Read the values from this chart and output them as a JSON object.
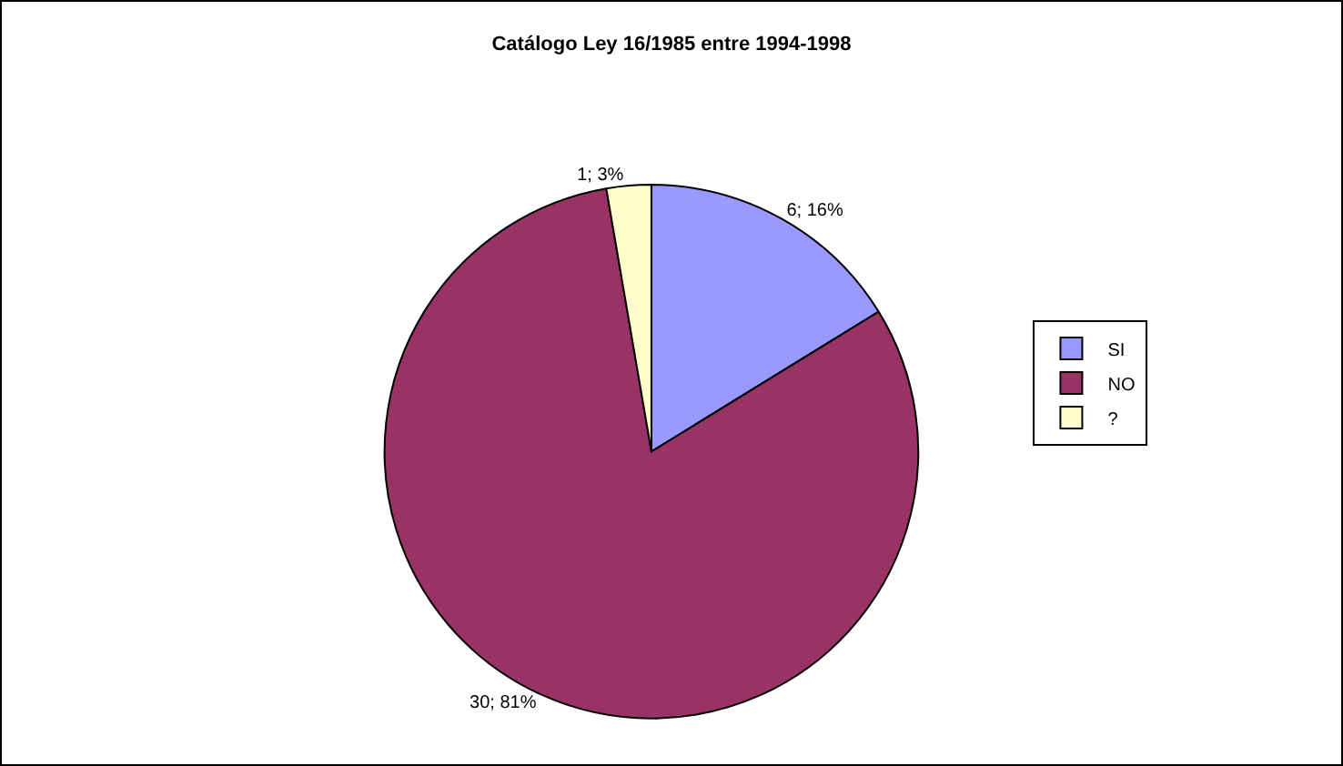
{
  "chart_data": {
    "type": "pie",
    "title": "Catálogo Ley 16/1985 entre 1994-1998",
    "categories": [
      "SI",
      "NO",
      "?"
    ],
    "values": [
      6,
      30,
      1
    ],
    "colors": [
      "#9999ff",
      "#993366",
      "#ffffcc"
    ],
    "value_labels": [
      "6; 16%",
      "30; 81%",
      "1; 3%"
    ],
    "legend": "right"
  }
}
